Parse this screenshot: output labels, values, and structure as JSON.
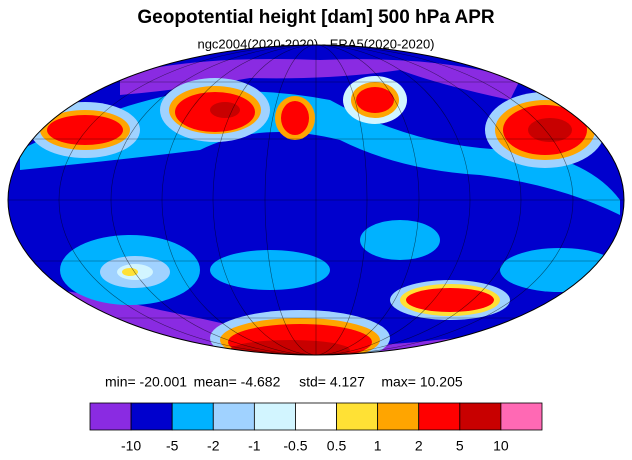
{
  "header": {
    "title": "Geopotential height [dam] 500 hPa APR",
    "subtitle": "ngc2004(2020-2020) - ERA5(2020-2020)"
  },
  "stats": [
    "min= -20.001",
    "mean= -4.682",
    "std=  4.127",
    "max= 10.205"
  ],
  "colorbar": {
    "colors": [
      "#8a2be2",
      "#0000cd",
      "#00b2ff",
      "#a0d2ff",
      "#d2f5ff",
      "#ffffff",
      "#ffe135",
      "#ffa500",
      "#ff0000",
      "#c80000",
      "#ff69b4"
    ],
    "labels": [
      "-10",
      "-5",
      "-2",
      "-1",
      "-0.5",
      "0.5",
      "1",
      "2",
      "5",
      "10"
    ]
  }
}
